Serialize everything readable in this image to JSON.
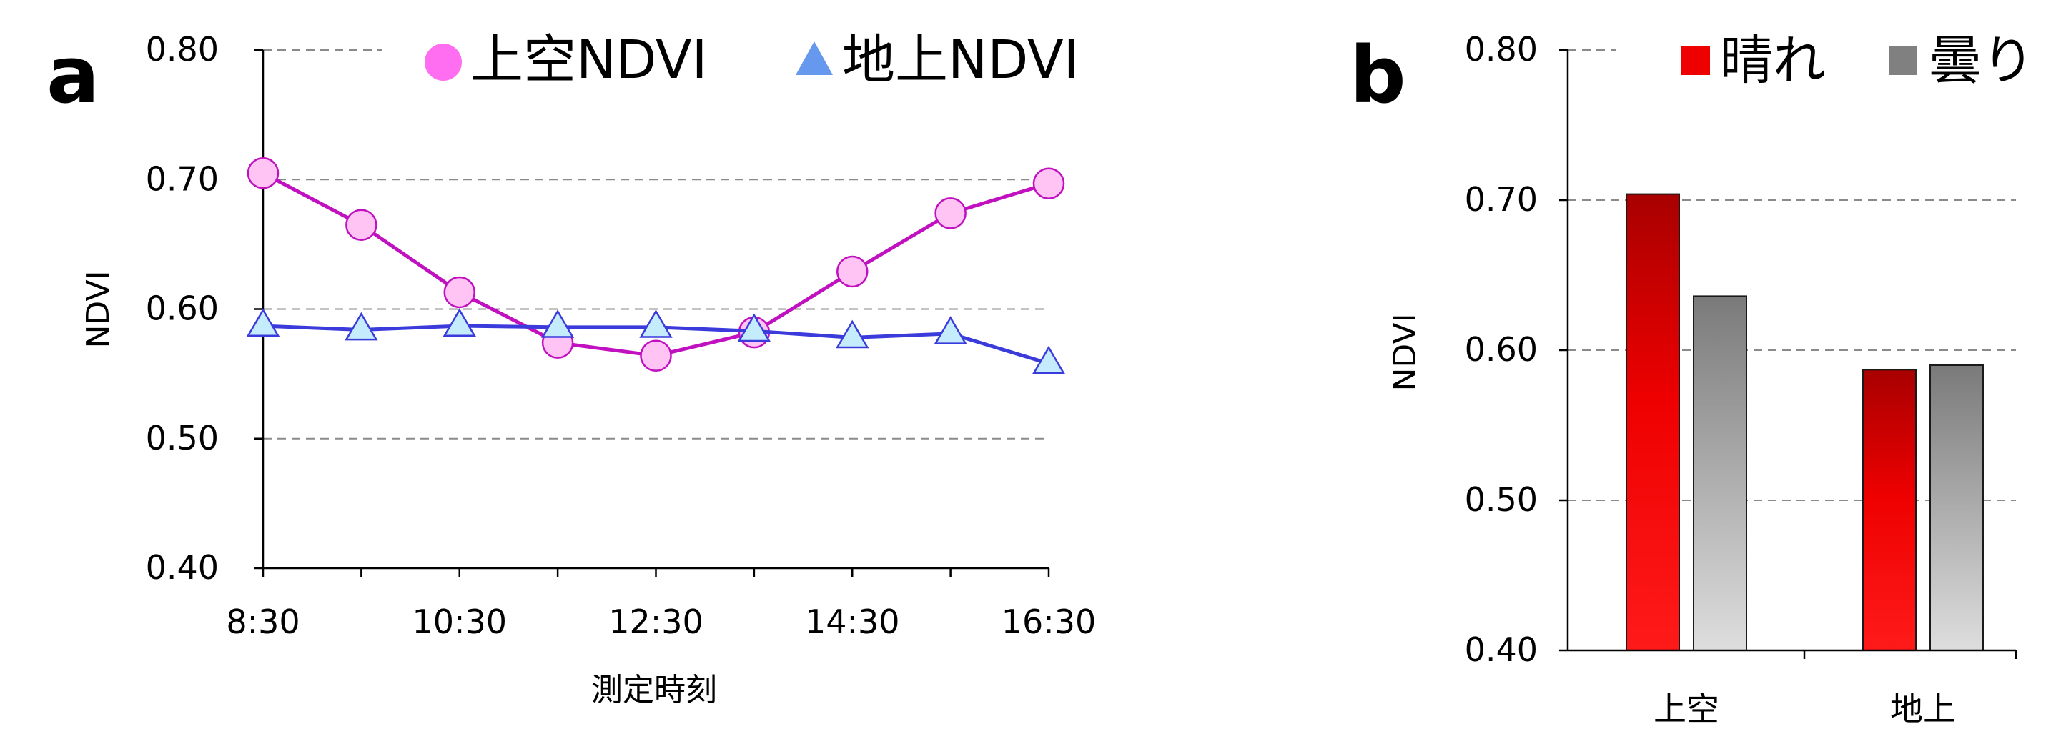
{
  "panels": {
    "a_label": "a",
    "b_label": "b"
  },
  "colors": {
    "aerial_line": "#c010c0",
    "aerial_fill": "#ffc4f4",
    "ground_line": "#3b3bdc",
    "ground_fill": "#c4ecfc",
    "aerial_legend": "#ff6ef0",
    "ground_legend": "#6699ee",
    "sunny_top": "#a80000",
    "sunny_bottom": "#ff1a1a",
    "cloudy_top": "#7a7a7a",
    "cloudy_bottom": "#dedede"
  },
  "chart_data": [
    {
      "type": "line",
      "ylabel": "NDVI",
      "xlabel": "測定時刻",
      "ylim": [
        0.4,
        0.8
      ],
      "yticks": [
        "0.40",
        "0.50",
        "0.60",
        "0.70",
        "0.80"
      ],
      "grid": "horizontal dashed",
      "legend_position": "top-right",
      "x": [
        "8:30",
        "9:30",
        "10:30",
        "11:30",
        "12:30",
        "13:30",
        "14:30",
        "15:30",
        "16:30"
      ],
      "xticks": [
        "8:30",
        "10:30",
        "12:30",
        "14:30",
        "16:30"
      ],
      "series": [
        {
          "name": "上空NDVI",
          "marker": "circle",
          "values": [
            0.705,
            0.665,
            0.613,
            0.574,
            0.564,
            0.582,
            0.629,
            0.674,
            0.697
          ]
        },
        {
          "name": "地上NDVI",
          "marker": "triangle",
          "values": [
            0.587,
            0.584,
            0.587,
            0.586,
            0.586,
            0.583,
            0.578,
            0.581,
            0.558
          ]
        }
      ]
    },
    {
      "type": "bar",
      "ylabel": "NDVI",
      "xlabel": "",
      "ylim": [
        0.4,
        0.8
      ],
      "yticks": [
        "0.40",
        "0.50",
        "0.60",
        "0.70",
        "0.80"
      ],
      "grid": "horizontal dashed",
      "legend_position": "top-right",
      "categories": [
        "上空",
        "地上"
      ],
      "series": [
        {
          "name": "晴れ",
          "values": [
            0.704,
            0.587
          ]
        },
        {
          "name": "曇り",
          "values": [
            0.636,
            0.59
          ]
        }
      ]
    }
  ]
}
